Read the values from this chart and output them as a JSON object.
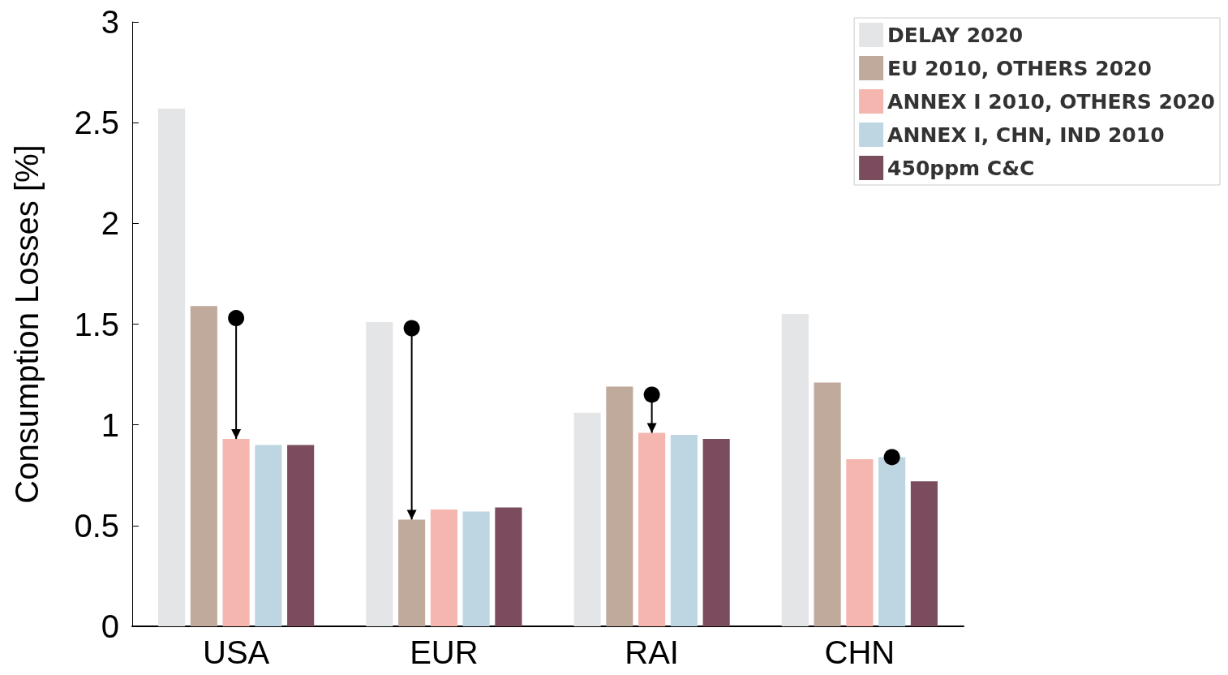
{
  "chart_data": {
    "type": "bar",
    "ylabel": "Consumption Losses [%]",
    "categories": [
      "USA",
      "EUR",
      "RAI",
      "CHN"
    ],
    "series": [
      {
        "name": "DELAY 2020",
        "color": "#e4e5e7",
        "values": [
          2.57,
          1.51,
          1.06,
          1.55
        ]
      },
      {
        "name": "EU 2010, OTHERS 2020",
        "color": "#c0aa9c",
        "values": [
          1.59,
          0.53,
          1.19,
          1.21
        ]
      },
      {
        "name": "ANNEX I 2010, OTHERS 2020",
        "color": "#f4b6ae",
        "values": [
          0.93,
          0.58,
          0.96,
          0.83
        ]
      },
      {
        "name": "ANNEX I, CHN, IND 2010",
        "color": "#bdd6e1",
        "values": [
          0.9,
          0.57,
          0.95,
          0.84
        ]
      },
      {
        "name": "450ppm C&C",
        "color": "#7a4c5e",
        "values": [
          0.9,
          0.59,
          0.93,
          0.72
        ]
      },
      {
        "type": "scatter",
        "color": "#000000",
        "marker": "circle",
        "x": [
          "USA",
          "EUR",
          "RAI",
          "CHN"
        ],
        "values": [
          1.53,
          1.48,
          1.15,
          0.84
        ],
        "errors": [
          [
            0.93,
            1.53
          ],
          [
            0.53,
            1.48
          ],
          [
            0.96,
            1.15
          ],
          null
        ]
      }
    ],
    "ylim": [
      0,
      3
    ],
    "yticks": [
      0,
      0.5,
      1,
      1.5,
      2,
      2.5,
      3
    ],
    "grid": false,
    "legend": "top right"
  }
}
